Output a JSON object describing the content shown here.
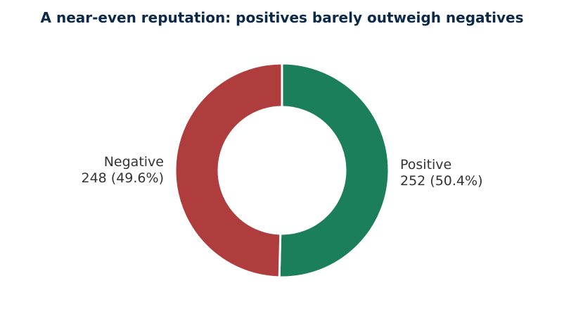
{
  "chart_data": {
    "type": "pie",
    "title": "A near-even reputation: positives barely outweigh negatives",
    "donut": true,
    "slices": [
      {
        "name": "Positive",
        "value": 252,
        "percent": "50.4%",
        "color": "#1b7f5c"
      },
      {
        "name": "Negative",
        "value": 248,
        "percent": "49.6%",
        "color": "#b03d3d"
      }
    ],
    "labels": [
      {
        "name": "Positive",
        "detail": "252 (50.4%)"
      },
      {
        "name": "Negative",
        "detail": "248 (49.6%)"
      }
    ],
    "legend": "none"
  }
}
